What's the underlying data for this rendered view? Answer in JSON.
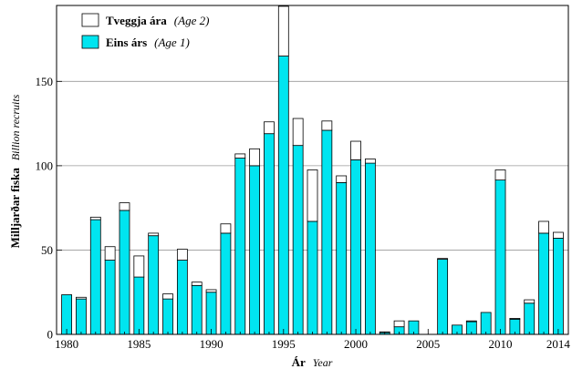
{
  "chart_data": {
    "type": "bar",
    "stacked": true,
    "x": [
      1980,
      1981,
      1982,
      1983,
      1984,
      1985,
      1986,
      1987,
      1988,
      1989,
      1990,
      1991,
      1992,
      1993,
      1994,
      1995,
      1996,
      1997,
      1998,
      1999,
      2000,
      2001,
      2002,
      2003,
      2004,
      2005,
      2006,
      2007,
      2008,
      2009,
      2010,
      2011,
      2012,
      2013,
      2014
    ],
    "series": [
      {
        "name": "Eins árs",
        "name_suffix": "(Age 1)",
        "color": "#00e5f0",
        "values": [
          23.5,
          21,
          68,
          44,
          73.5,
          34,
          58.5,
          21,
          44,
          29,
          25,
          60,
          104.5,
          100,
          119,
          165,
          112,
          67,
          121,
          90,
          103.5,
          101.5,
          1,
          4.5,
          8,
          0,
          44.5,
          5.5,
          7.5,
          13,
          91.5,
          9,
          18.5,
          60,
          57
        ]
      },
      {
        "name": "Tveggja ára",
        "name_suffix": "(Age 2)",
        "color": "#ffffff",
        "values": [
          0,
          1,
          1.5,
          8,
          4.5,
          12.5,
          1.5,
          3,
          6.5,
          2,
          1.5,
          5.5,
          2.5,
          10,
          7,
          29.5,
          16,
          30.5,
          5.5,
          4,
          11,
          2.5,
          0.5,
          3.5,
          0,
          0,
          0.5,
          0,
          0.5,
          0,
          6,
          0.5,
          2,
          7,
          3.5
        ]
      }
    ],
    "xticks": [
      "1980",
      "1985",
      "1990",
      "1995",
      "2000",
      "2005",
      "2010",
      "2014"
    ],
    "yticks": [
      "0",
      "50",
      "100",
      "150"
    ],
    "ylim": [
      0,
      195
    ],
    "grid": true,
    "legend": "top-left",
    "ylabel": "Milljarðar fiska",
    "ylabel_en": "Billion recruits",
    "xlabel": "Ár",
    "xlabel_en": "Year"
  }
}
